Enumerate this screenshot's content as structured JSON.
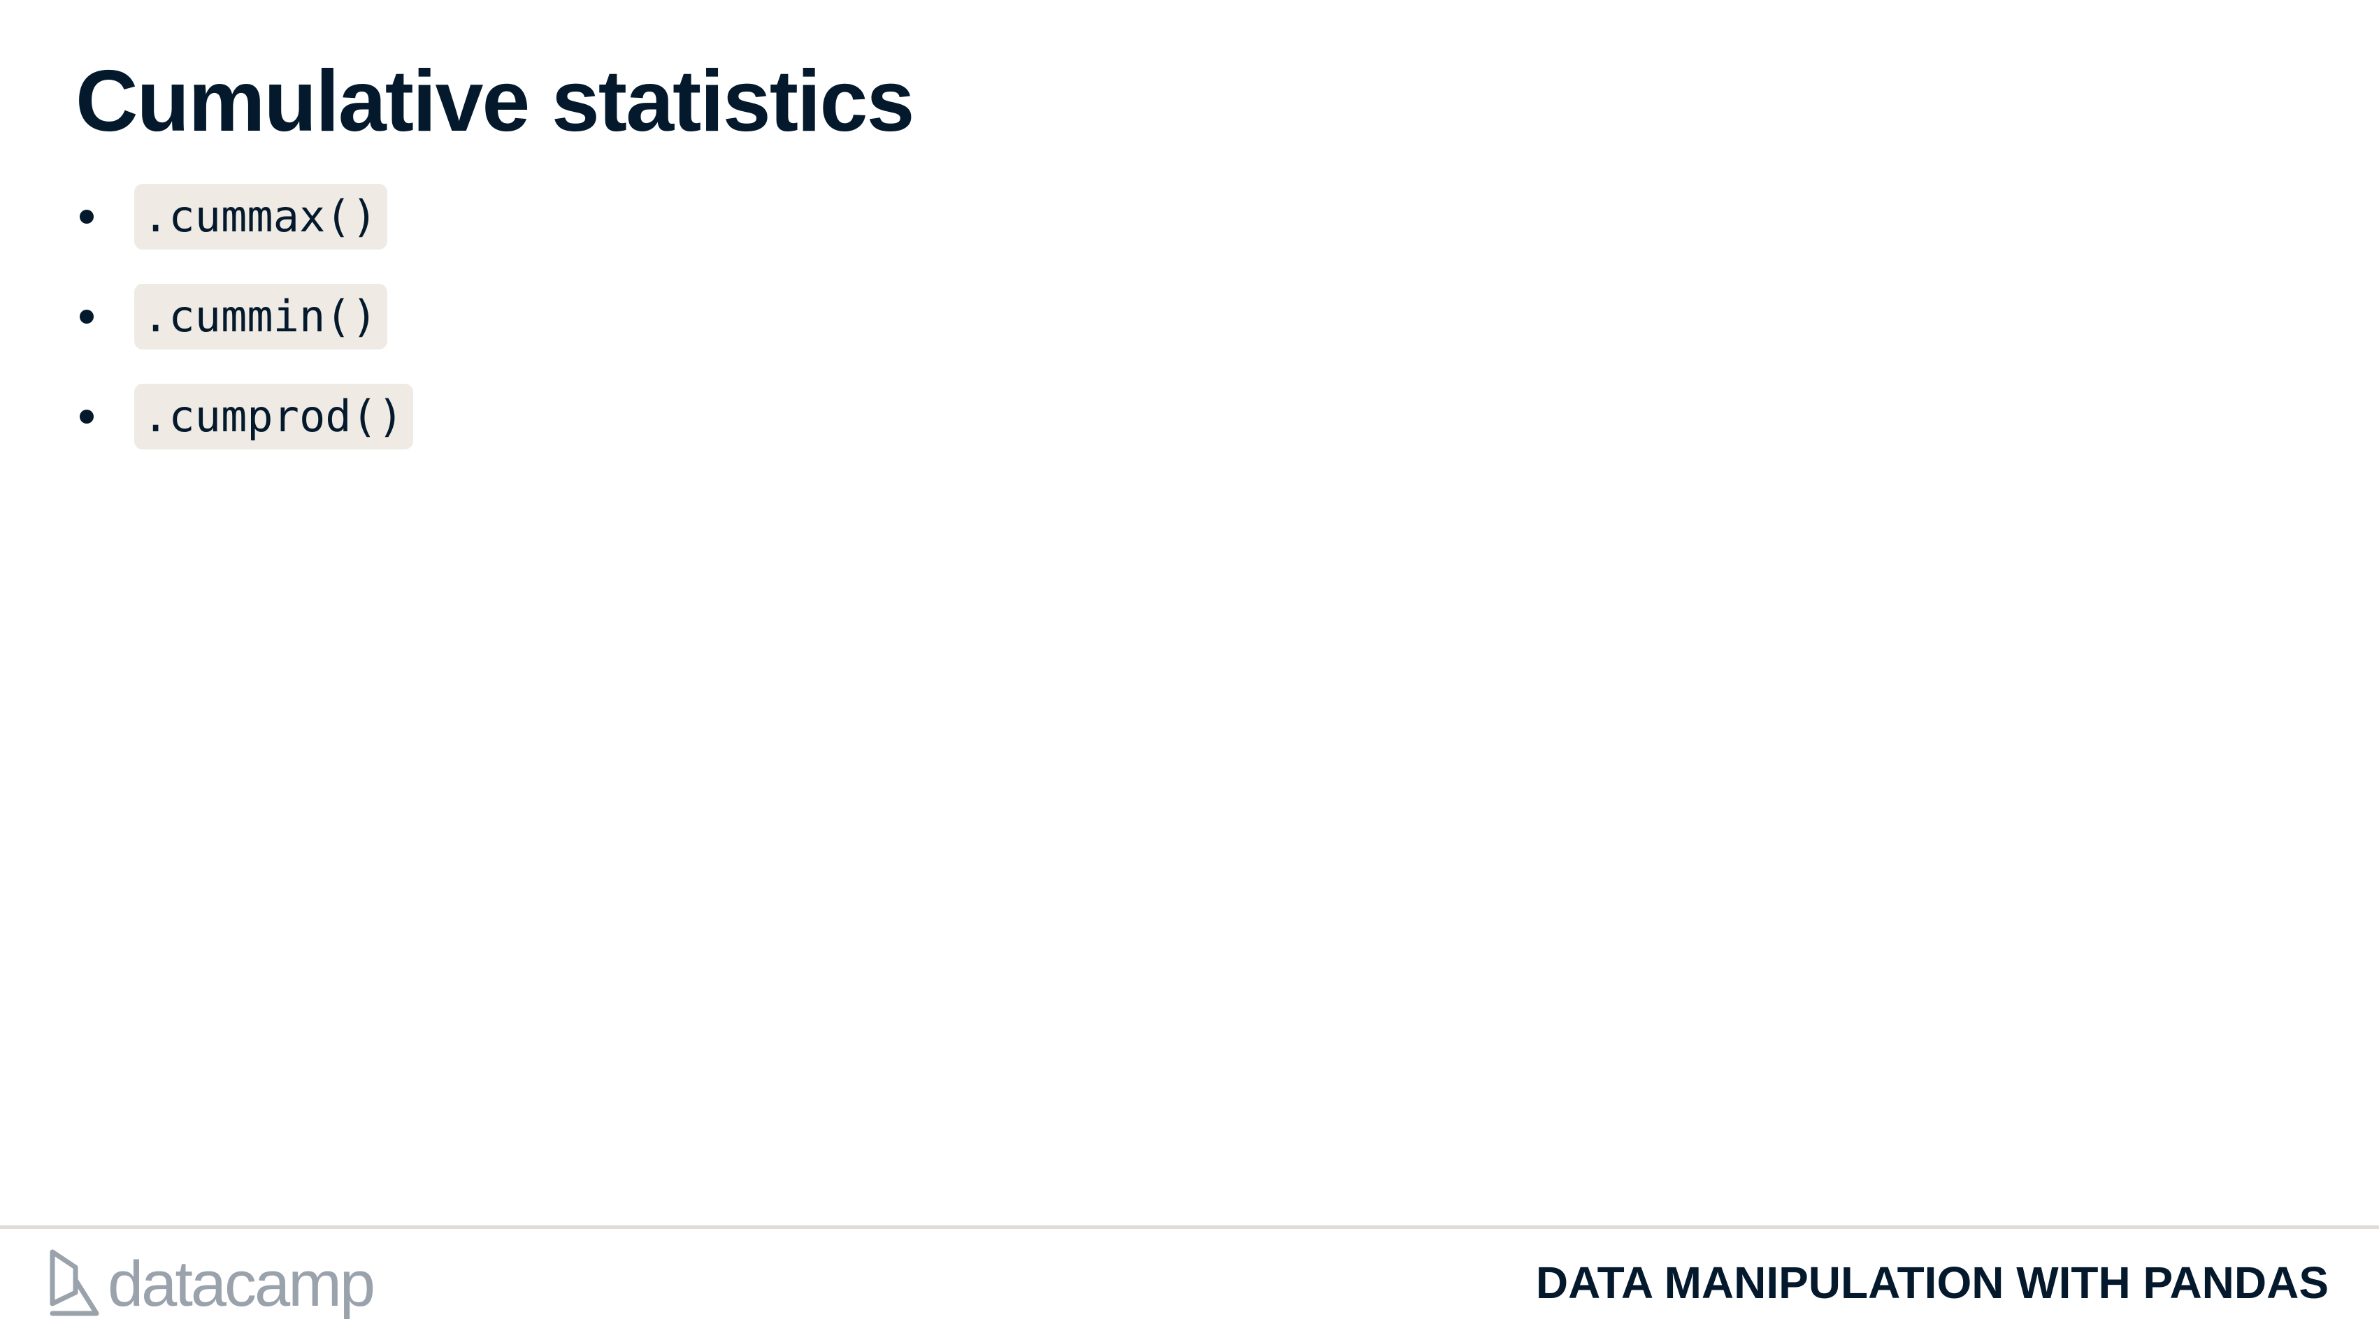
{
  "slide": {
    "title": "Cumulative statistics",
    "bullets": [
      {
        "code": ".cummax()"
      },
      {
        "code": ".cummin()"
      },
      {
        "code": ".cumprod()"
      }
    ]
  },
  "footer": {
    "logo_text": "datacamp",
    "course_name": "DATA MANIPULATION WITH PANDAS"
  },
  "colors": {
    "text": "#05192d",
    "code_background": "#efebe4",
    "logo": "#9aa2ab",
    "divider": "#e1ddd6"
  },
  "icons": [
    "datacamp-logo-icon",
    "bullet-icon"
  ]
}
